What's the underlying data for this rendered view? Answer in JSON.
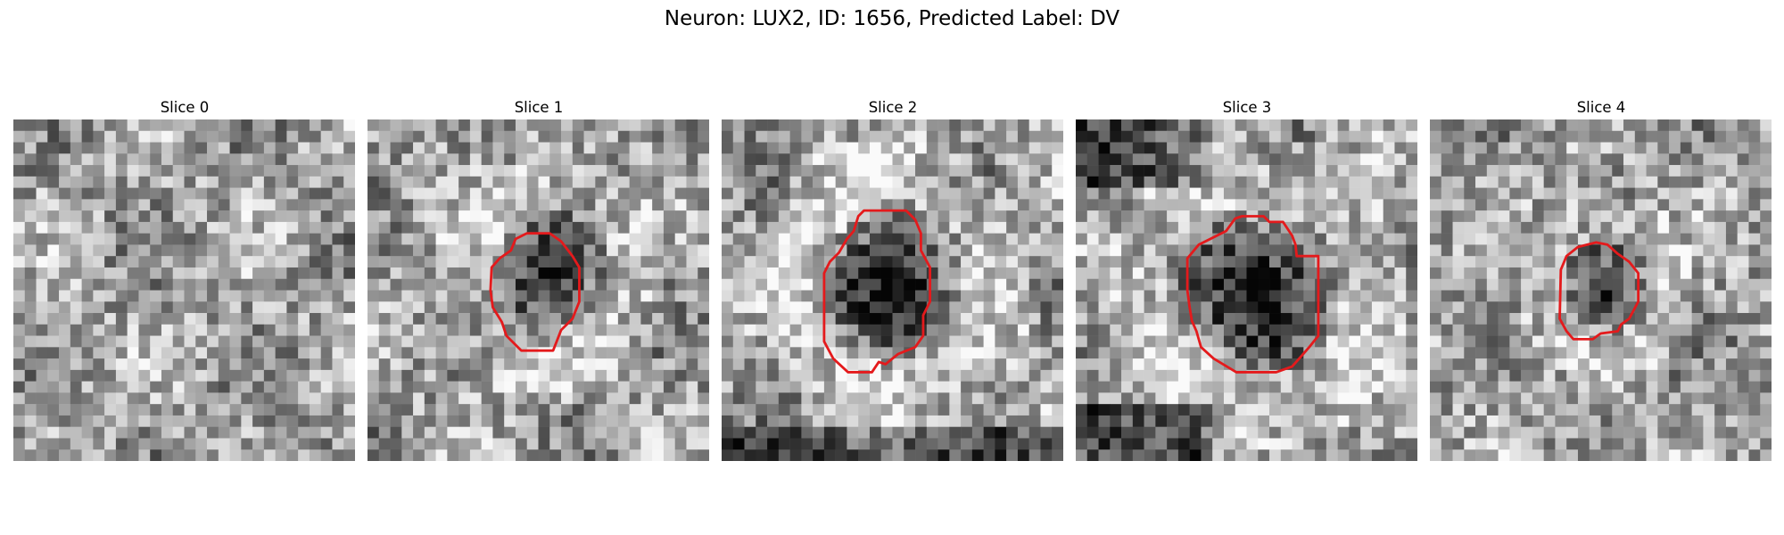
{
  "figure": {
    "title": "Neuron: LUX2, ID: 1656, Predicted Label: DV"
  },
  "panels": [
    {
      "title": "Slice 0",
      "seed": 11,
      "has_contour": false
    },
    {
      "title": "Slice 1",
      "seed": 23,
      "has_contour": true
    },
    {
      "title": "Slice 2",
      "seed": 37,
      "has_contour": true
    },
    {
      "title": "Slice 3",
      "seed": 41,
      "has_contour": true
    },
    {
      "title": "Slice 4",
      "seed": 53,
      "has_contour": true
    }
  ],
  "colors": {
    "contour": "#e41a1c",
    "background": "#ffffff"
  }
}
